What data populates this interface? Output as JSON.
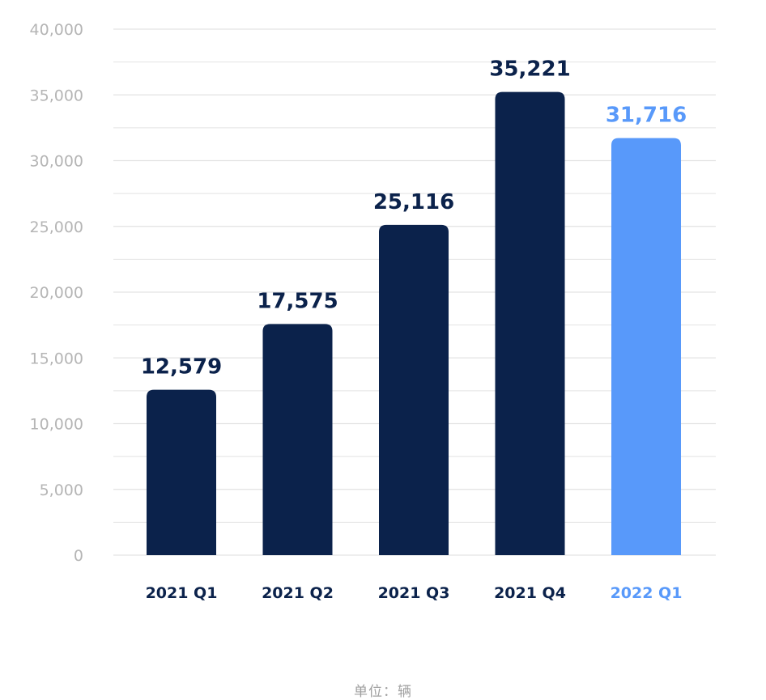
{
  "chart_data": {
    "type": "bar",
    "categories": [
      "2021 Q1",
      "2021 Q2",
      "2021 Q3",
      "2021 Q4",
      "2022 Q1"
    ],
    "values": [
      12579,
      17575,
      25116,
      35221,
      31716
    ],
    "data_labels": [
      "12,579",
      "17,575",
      "25,116",
      "35,221",
      "31,716"
    ],
    "ylim": [
      0,
      40000
    ],
    "yticks": [
      0,
      5000,
      10000,
      15000,
      20000,
      25000,
      30000,
      35000,
      40000
    ],
    "ytick_labels": [
      "0",
      "5,000",
      "10,000",
      "15,000",
      "20,000",
      "25,000",
      "30,000",
      "35,000",
      "40,000"
    ],
    "grid": true,
    "unit_note": "单位：辆",
    "colors": {
      "bar": "#0b224b",
      "highlight_bar": "#5899fa",
      "grid": "#e3e3e3",
      "tick_text": "#b5b5b5"
    },
    "highlight_index": 4
  }
}
